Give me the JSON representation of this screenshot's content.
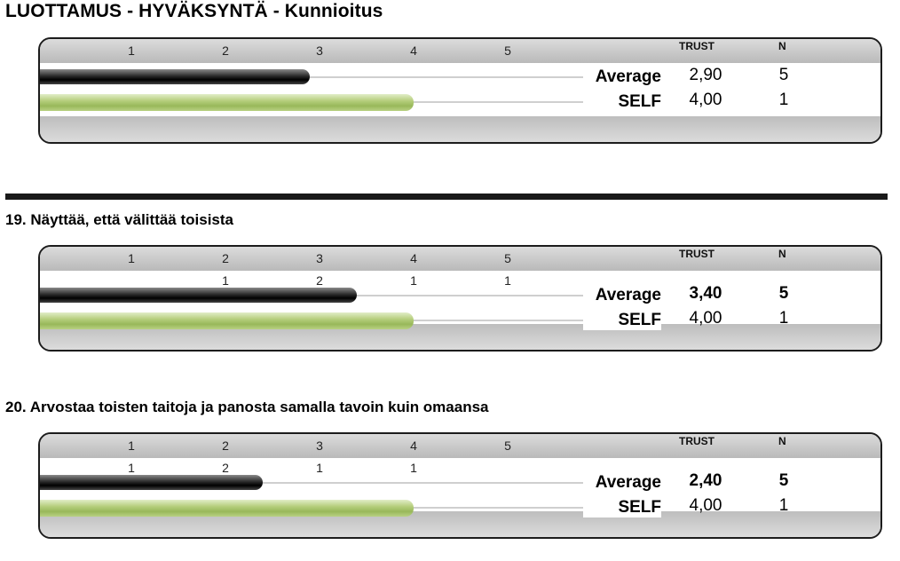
{
  "page_title": "LUOTTAMUS - HYVÄKSYNTÄ - Kunnioitus",
  "colors": {
    "average_bar": "#1a1a1a",
    "self_bar": "#a6c46a",
    "band": "#c8c8c8"
  },
  "chart_data": [
    {
      "type": "bar",
      "title": "",
      "scale": [
        "1",
        "2",
        "3",
        "4",
        "5"
      ],
      "xlim": [
        0,
        5
      ],
      "columns": {
        "trust": "TRUST",
        "n": "N"
      },
      "distribution": [],
      "series": [
        {
          "name": "Average",
          "value": 2.9,
          "trust": "2,90",
          "n": "5"
        },
        {
          "name": "SELF",
          "value": 4.0,
          "trust": "4,00",
          "n": "1"
        }
      ]
    },
    {
      "type": "bar",
      "title": "19. Näyttää, että välittää toisista",
      "scale": [
        "1",
        "2",
        "3",
        "4",
        "5"
      ],
      "xlim": [
        0,
        5
      ],
      "columns": {
        "trust": "TRUST",
        "n": "N"
      },
      "distribution": [
        "",
        "1",
        "2",
        "1",
        "1"
      ],
      "series": [
        {
          "name": "Average",
          "value": 3.4,
          "trust": "3,40",
          "n": "5"
        },
        {
          "name": "SELF",
          "value": 4.0,
          "trust": "4,00",
          "n": "1"
        }
      ]
    },
    {
      "type": "bar",
      "title": "20. Arvostaa toisten taitoja ja panosta samalla tavoin kuin omaansa",
      "scale": [
        "1",
        "2",
        "3",
        "4",
        "5"
      ],
      "xlim": [
        0,
        5
      ],
      "columns": {
        "trust": "TRUST",
        "n": "N"
      },
      "distribution": [
        "1",
        "2",
        "1",
        "1",
        ""
      ],
      "series": [
        {
          "name": "Average",
          "value": 2.4,
          "trust": "2,40",
          "n": "5"
        },
        {
          "name": "SELF",
          "value": 4.0,
          "trust": "4,00",
          "n": "1"
        }
      ]
    }
  ]
}
